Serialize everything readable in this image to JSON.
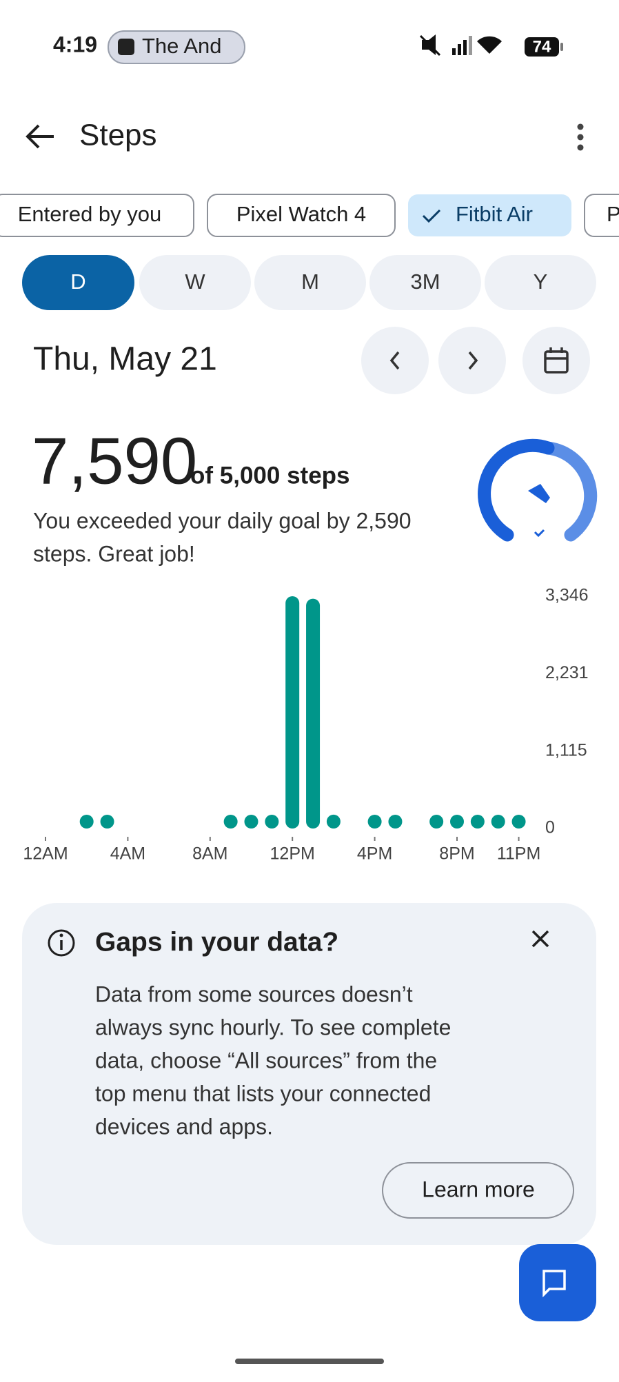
{
  "status_bar": {
    "time": "4:19",
    "now_playing": "The And",
    "battery": "74"
  },
  "header": {
    "title": "Steps"
  },
  "source_chips": [
    "Entered by you",
    "Pixel Watch 4",
    "Fitbit Air",
    "P"
  ],
  "period_tabs": [
    "D",
    "W",
    "M",
    "3M",
    "Y"
  ],
  "date": "Thu, May 21",
  "summary": {
    "value": "7,590",
    "goal_text": "of 5,000 steps",
    "message": [
      "You exceeded your daily goal by 2,590",
      "steps. Great job!"
    ]
  },
  "chart_data": {
    "type": "bar",
    "categories": [
      "12AM",
      null,
      null,
      null,
      "4AM",
      null,
      null,
      null,
      "8AM",
      null,
      null,
      null,
      "12PM",
      null,
      null,
      null,
      "4PM",
      null,
      null,
      null,
      "8PM",
      null,
      null,
      "11PM"
    ],
    "values": [
      null,
      null,
      20,
      150,
      null,
      null,
      null,
      null,
      null,
      15,
      20,
      30,
      3346,
      3310,
      200,
      null,
      10,
      10,
      null,
      8,
      3,
      10,
      180,
      5
    ],
    "color": "#00968a",
    "ylim": [
      0,
      3346
    ],
    "yticks": [
      0,
      {
        "value": 1115,
        "label": "1,115"
      },
      {
        "value": 2231,
        "label": "2,231"
      },
      {
        "value": 3346,
        "label": "3,346"
      }
    ]
  },
  "card": {
    "title": "Gaps in your data?",
    "body": [
      "Data from some sources doesn’t",
      "always sync hourly. To see complete",
      "data, choose “All sources” from the",
      "top menu that lists your connected",
      "devices and apps."
    ],
    "button": "Learn more"
  }
}
